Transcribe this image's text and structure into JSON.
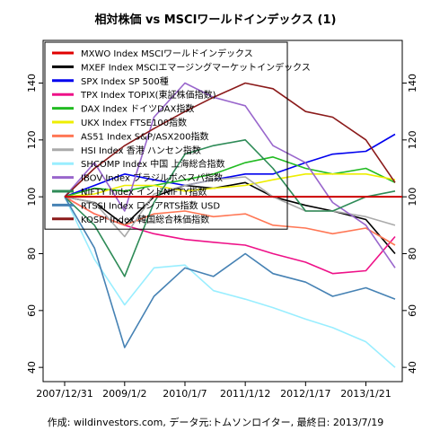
{
  "chart_data": {
    "type": "line",
    "title": "相対株価 vs MSCIワールドインデックス (1)",
    "footer": "作成: wildinvestors.com, データ元:トムソンロイター, 最終日: 2013/7/19",
    "x_ticks": [
      "2007/12/31",
      "2009/1/2",
      "2010/1/7",
      "2011/1/12",
      "2012/1/17",
      "2013/1/21"
    ],
    "y_ticks": [
      40,
      60,
      80,
      100,
      120,
      140
    ],
    "ylim": [
      35,
      155
    ],
    "reference_line": {
      "value": 100,
      "color": "#cc0000"
    },
    "x": [
      "2007/12/31",
      "2008/7/1",
      "2009/1/2",
      "2009/7/1",
      "2010/1/7",
      "2010/7/1",
      "2011/1/12",
      "2011/7/1",
      "2012/1/17",
      "2012/7/1",
      "2013/1/21",
      "2013/7/19"
    ],
    "series": [
      {
        "name": "MXWO Index MSCIワールドインデックス",
        "color": "#e00000",
        "values": [
          100,
          100,
          100,
          100,
          100,
          100,
          100,
          100,
          100,
          100,
          100,
          100
        ]
      },
      {
        "name": "MXEF Index MSCIエマージングマーケットインデックス",
        "color": "#000000",
        "values": [
          100,
          98,
          90,
          100,
          104,
          103,
          105,
          100,
          97,
          95,
          92,
          80
        ]
      },
      {
        "name": "SPX Index SP 500種",
        "color": "#0000ee",
        "values": [
          100,
          104,
          108,
          106,
          104,
          106,
          108,
          108,
          112,
          115,
          116,
          122
        ]
      },
      {
        "name": "TPX Index TOPIX(東証株価指数)",
        "color": "#ee1188",
        "values": [
          100,
          94,
          90,
          87,
          85,
          84,
          83,
          80,
          77,
          73,
          74,
          86
        ]
      },
      {
        "name": "DAX Index ドイツDAX指数",
        "color": "#22bb22",
        "values": [
          100,
          103,
          102,
          104,
          106,
          108,
          112,
          114,
          110,
          108,
          110,
          105
        ]
      },
      {
        "name": "UKX Index FTSE100指数",
        "color": "#eeee00",
        "values": [
          100,
          101,
          104,
          104,
          102,
          103,
          104,
          106,
          108,
          108,
          108,
          106
        ]
      },
      {
        "name": "AS51 Index S&P/ASX200指数",
        "color": "#ff7755",
        "values": [
          100,
          94,
          90,
          94,
          95,
          93,
          94,
          90,
          89,
          87,
          89,
          83
        ]
      },
      {
        "name": "HSI Index 香港 ハンセン指数",
        "color": "#aaaaaa",
        "values": [
          100,
          98,
          86,
          101,
          104,
          106,
          107,
          100,
          95,
          95,
          93,
          90
        ]
      },
      {
        "name": "SHCOMP Index 中国 上海総合指数",
        "color": "#99eeff",
        "values": [
          100,
          78,
          62,
          75,
          76,
          67,
          64,
          61,
          57,
          54,
          49,
          40
        ]
      },
      {
        "name": "IBOV Index ブラジルボベスパ指数",
        "color": "#9966cc",
        "values": [
          100,
          112,
          95,
          128,
          140,
          135,
          132,
          118,
          112,
          98,
          90,
          75
        ]
      },
      {
        "name": "NIFTY Index インドNIFTY指数",
        "color": "#2e8b57",
        "values": [
          100,
          90,
          72,
          98,
          115,
          118,
          120,
          110,
          95,
          95,
          100,
          102
        ]
      },
      {
        "name": "RTSSI Index ロシアRTS指数 USD",
        "color": "#4682b4",
        "values": [
          100,
          82,
          47,
          65,
          75,
          72,
          80,
          73,
          70,
          65,
          68,
          64
        ]
      },
      {
        "name": "KOSPI Index 韓国総合株価指数",
        "color": "#8b1a1a",
        "values": [
          100,
          110,
          118,
          124,
          130,
          135,
          140,
          138,
          130,
          128,
          120,
          105
        ]
      }
    ]
  }
}
